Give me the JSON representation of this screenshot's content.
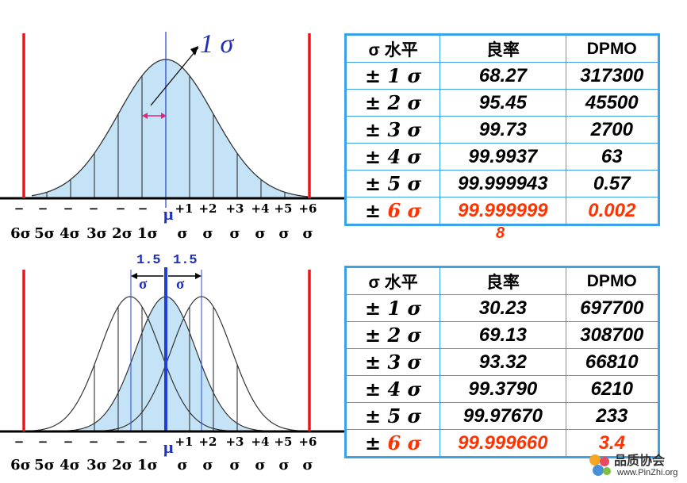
{
  "top_panel": {
    "sigma_annotation": "1 σ",
    "mu_label": "μ",
    "axis_labels_top": [
      "−",
      "−",
      "−",
      "−",
      "−",
      "−",
      "+1",
      "+2",
      "+3",
      "+4",
      "+5",
      "+6"
    ],
    "axis_labels_bottom": [
      "6σ",
      "5σ",
      "4σ",
      "3σ",
      "2σ",
      "1σ",
      "σ",
      "σ",
      "σ",
      "σ",
      "σ",
      "σ"
    ]
  },
  "bottom_panel": {
    "shift_label_left": "1.5",
    "shift_label_right": "1.5",
    "shift_sigma_left": "σ",
    "shift_sigma_right": "σ",
    "mu_label": "μ",
    "axis_labels_top": [
      "−",
      "−",
      "−",
      "−",
      "−",
      "−",
      "+1",
      "+2",
      "+3",
      "+4",
      "+5",
      "+6"
    ],
    "axis_labels_bottom": [
      "6σ",
      "5σ",
      "4σ",
      "3σ",
      "2σ",
      "1σ",
      "σ",
      "σ",
      "σ",
      "σ",
      "σ",
      "σ"
    ]
  },
  "table_top": {
    "headers": [
      "σ 水平",
      "良率",
      "DPMO"
    ],
    "rows": [
      {
        "pm": "±",
        "level": "1",
        "sigma": "σ",
        "yield": "68.27",
        "dpmo": "317300"
      },
      {
        "pm": "±",
        "level": "2",
        "sigma": "σ",
        "yield": "95.45",
        "dpmo": "45500"
      },
      {
        "pm": "±",
        "level": "3",
        "sigma": "σ",
        "yield": "99.73",
        "dpmo": "2700"
      },
      {
        "pm": "±",
        "level": "4",
        "sigma": "σ",
        "yield": "99.9937",
        "dpmo": "63"
      },
      {
        "pm": "±",
        "level": "5",
        "sigma": "σ",
        "yield": "99.999943",
        "dpmo": "0.57"
      },
      {
        "pm": "±",
        "level": "6",
        "sigma": "σ",
        "yield": "99.999999",
        "dpmo": "0.002"
      }
    ],
    "overflow_digit": "8"
  },
  "table_bottom": {
    "headers": [
      "σ 水平",
      "良率",
      "DPMO"
    ],
    "rows": [
      {
        "pm": "±",
        "level": "1",
        "sigma": "σ",
        "yield": "30.23",
        "dpmo": "697700"
      },
      {
        "pm": "±",
        "level": "2",
        "sigma": "σ",
        "yield": "69.13",
        "dpmo": "308700"
      },
      {
        "pm": "±",
        "level": "3",
        "sigma": "σ",
        "yield": "93.32",
        "dpmo": "66810"
      },
      {
        "pm": "±",
        "level": "4",
        "sigma": "σ",
        "yield": "99.3790",
        "dpmo": "6210"
      },
      {
        "pm": "±",
        "level": "5",
        "sigma": "σ",
        "yield": "99.97670",
        "dpmo": "233"
      },
      {
        "pm": "±",
        "level": "6",
        "sigma": "σ",
        "yield": "99.999660",
        "dpmo": "3.4"
      }
    ]
  },
  "logo": {
    "title": "品质协会",
    "url": "www.PinZhi.org"
  },
  "colors": {
    "curve_fill": "#c5e3f6",
    "spec_limit": "#e8161b",
    "table_border": "#3aa3e8",
    "highlight": "#ff3300",
    "mean_line": "#1f3fd6",
    "label_blue": "#1f2fbf",
    "arrow_pink": "#e0287a"
  }
}
